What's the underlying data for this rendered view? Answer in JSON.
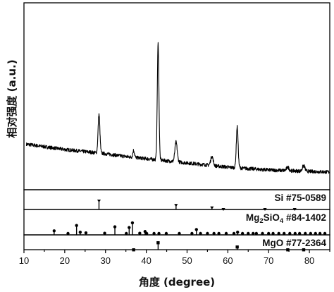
{
  "chart_data": {
    "type": "line",
    "xlabel": "角度 (degree)",
    "ylabel": "相对强度 (a.u.)",
    "xlim": [
      10,
      85
    ],
    "x_ticks": [
      10,
      20,
      30,
      40,
      50,
      60,
      70,
      80
    ],
    "y_ticks_shown": false,
    "grid": false,
    "pattern": {
      "baseline": [
        [
          10,
          55
        ],
        [
          15,
          51
        ],
        [
          20,
          47
        ],
        [
          25,
          44
        ],
        [
          30,
          41
        ],
        [
          35,
          37
        ],
        [
          40,
          34
        ],
        [
          45,
          31
        ],
        [
          50,
          28
        ],
        [
          55,
          25
        ],
        [
          60,
          22
        ],
        [
          65,
          20
        ],
        [
          70,
          18
        ],
        [
          75,
          17
        ],
        [
          80,
          16
        ],
        [
          85,
          15
        ]
      ],
      "peaks": [
        {
          "x": 28.4,
          "height": 55,
          "width": 0.22
        },
        {
          "x": 36.9,
          "height": 10,
          "width": 0.2
        },
        {
          "x": 42.9,
          "height": 165,
          "width": 0.2
        },
        {
          "x": 47.3,
          "height": 28,
          "width": 0.28
        },
        {
          "x": 56.1,
          "height": 13,
          "width": 0.3
        },
        {
          "x": 62.3,
          "height": 58,
          "width": 0.22
        },
        {
          "x": 74.7,
          "height": 5,
          "width": 0.3
        },
        {
          "x": 78.6,
          "height": 8,
          "width": 0.3
        }
      ]
    },
    "references": [
      {
        "label_parts": [
          "Si #75-0589"
        ],
        "lines": [
          {
            "x": 28.4,
            "i": 100
          },
          {
            "x": 47.3,
            "i": 55
          },
          {
            "x": 56.1,
            "i": 30
          },
          {
            "x": 58.9,
            "i": 5
          },
          {
            "x": 69.1,
            "i": 8
          },
          {
            "x": 76.4,
            "i": 10
          }
        ]
      },
      {
        "label_parts": [
          "Mg",
          "2",
          "SiO",
          "4",
          " #84-1402"
        ],
        "lines": [
          {
            "x": 17.4,
            "i": 30
          },
          {
            "x": 20.8,
            "i": 8
          },
          {
            "x": 22.9,
            "i": 70
          },
          {
            "x": 23.8,
            "i": 20
          },
          {
            "x": 25.2,
            "i": 15
          },
          {
            "x": 29.8,
            "i": 12
          },
          {
            "x": 32.3,
            "i": 60
          },
          {
            "x": 35.1,
            "i": 8
          },
          {
            "x": 35.8,
            "i": 55
          },
          {
            "x": 36.6,
            "i": 90
          },
          {
            "x": 38.4,
            "i": 12
          },
          {
            "x": 39.7,
            "i": 25
          },
          {
            "x": 40.1,
            "i": 8
          },
          {
            "x": 41.9,
            "i": 8
          },
          {
            "x": 43.1,
            "i": 5
          },
          {
            "x": 44.9,
            "i": 6
          },
          {
            "x": 48.1,
            "i": 5
          },
          {
            "x": 51.2,
            "i": 5
          },
          {
            "x": 52.3,
            "i": 40
          },
          {
            "x": 53.3,
            "i": 6
          },
          {
            "x": 55.0,
            "i": 5
          },
          {
            "x": 56.6,
            "i": 10
          },
          {
            "x": 57.8,
            "i": 4
          },
          {
            "x": 59.6,
            "i": 5
          },
          {
            "x": 61.5,
            "i": 4
          },
          {
            "x": 62.4,
            "i": 20
          },
          {
            "x": 63.6,
            "i": 5
          },
          {
            "x": 65.0,
            "i": 4
          },
          {
            "x": 66.2,
            "i": 5
          },
          {
            "x": 67.0,
            "i": 4
          },
          {
            "x": 68.5,
            "i": 5
          },
          {
            "x": 70.0,
            "i": 4
          },
          {
            "x": 71.1,
            "i": 5
          },
          {
            "x": 72.5,
            "i": 4
          },
          {
            "x": 73.8,
            "i": 5
          },
          {
            "x": 75.2,
            "i": 4
          },
          {
            "x": 76.5,
            "i": 5
          },
          {
            "x": 77.6,
            "i": 4
          },
          {
            "x": 79.0,
            "i": 5
          },
          {
            "x": 80.3,
            "i": 4
          },
          {
            "x": 81.5,
            "i": 5
          },
          {
            "x": 82.6,
            "i": 4
          },
          {
            "x": 83.8,
            "i": 5
          }
        ]
      },
      {
        "label_parts": [
          "MgO #77-2364"
        ],
        "lines": [
          {
            "x": 36.9,
            "i": 10
          },
          {
            "x": 42.9,
            "i": 100
          },
          {
            "x": 62.3,
            "i": 50
          },
          {
            "x": 74.7,
            "i": 6
          },
          {
            "x": 78.6,
            "i": 12
          }
        ]
      }
    ]
  }
}
